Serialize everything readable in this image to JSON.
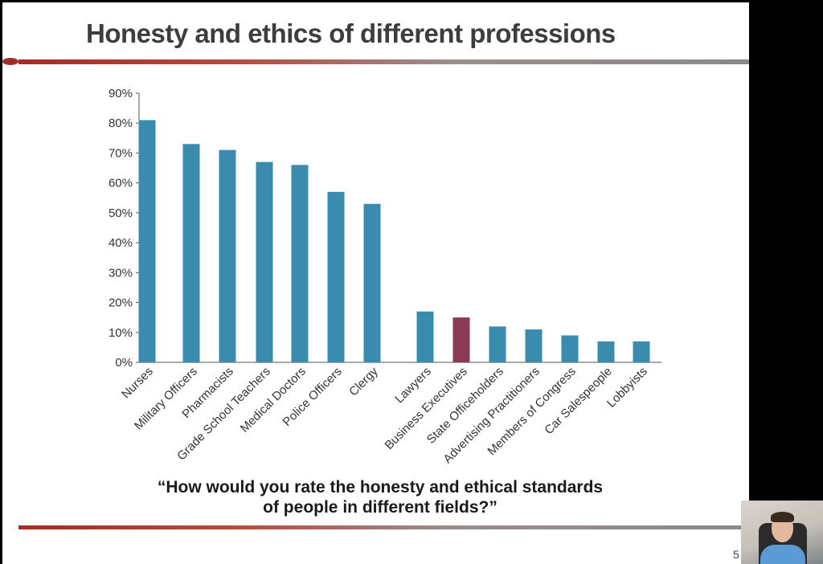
{
  "slide": {
    "title": "Honesty and ethics of different professions",
    "question_line1": "“How would you rate the honesty and ethical standards",
    "question_line2": "of people in different fields?”",
    "slide_number": "5"
  },
  "colors": {
    "bar": "#3a8cae",
    "highlight": "#8b3a55"
  },
  "chart_data": {
    "type": "bar",
    "categories": [
      "Nurses",
      "Military Officers",
      "Pharmacists",
      "Grade School Teachers",
      "Medical Doctors",
      "Police Officers",
      "Clergy",
      "Lawyers",
      "Business Executives",
      "State Officeholders",
      "Advertising Practitioners",
      "Members of Congress",
      "Car Salespeople",
      "Lobbyists"
    ],
    "values": [
      81,
      73,
      71,
      67,
      66,
      57,
      53,
      17,
      15,
      12,
      11,
      9,
      7,
      7
    ],
    "highlight_category": "Business Executives",
    "ylim": [
      0,
      90
    ],
    "yticks": [
      0,
      10,
      20,
      30,
      40,
      50,
      60,
      70,
      80,
      90
    ],
    "ytick_labels": [
      "0%",
      "10%",
      "20%",
      "30%",
      "40%",
      "50%",
      "60%",
      "70%",
      "80%",
      "90%"
    ],
    "title": "",
    "xlabel": "",
    "ylabel": "",
    "grid": false,
    "legend": "none"
  }
}
